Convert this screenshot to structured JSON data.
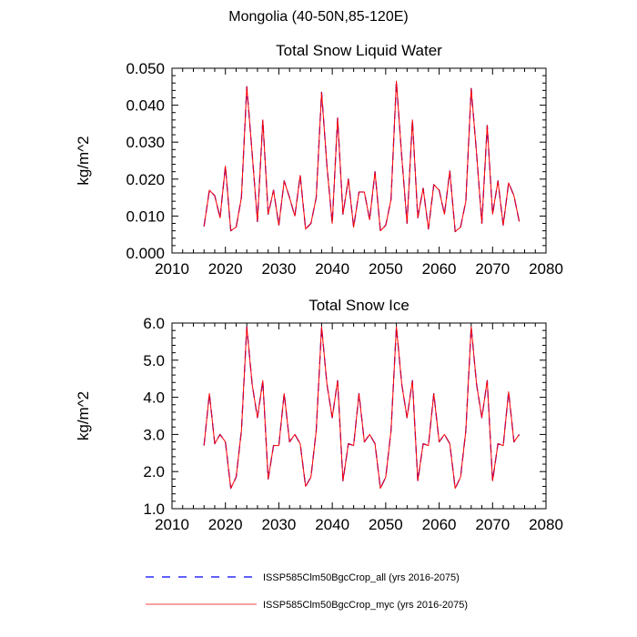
{
  "figure": {
    "title": "Mongolia (40-50N,85-120E)"
  },
  "legend": {
    "placement": "bottom",
    "entries": [
      {
        "label": "ISSP585Clm50BgcCrop_all (yrs 2016-2075)",
        "color": "#0000ff",
        "style": "dashed"
      },
      {
        "label": "ISSP585Clm50BgcCrop_myc (yrs 2016-2075)",
        "color": "#ff0000",
        "style": "solid"
      }
    ]
  },
  "chart_data": [
    {
      "type": "line",
      "title": "Total Snow Liquid Water",
      "xlabel": "",
      "ylabel": "kg/m^2",
      "xlim": [
        2010,
        2080
      ],
      "ylim": [
        0.0,
        0.05
      ],
      "xticks": [
        2010,
        2020,
        2030,
        2040,
        2050,
        2060,
        2070,
        2080
      ],
      "yticks": [
        0.0,
        0.01,
        0.02,
        0.03,
        0.04,
        0.05
      ],
      "ytick_labels": [
        "0.000",
        "0.010",
        "0.020",
        "0.030",
        "0.040",
        "0.050"
      ],
      "grid": false,
      "x": [
        2016,
        2017,
        2018,
        2019,
        2020,
        2021,
        2022,
        2023,
        2024,
        2025,
        2026,
        2027,
        2028,
        2029,
        2030,
        2031,
        2032,
        2033,
        2034,
        2035,
        2036,
        2037,
        2038,
        2039,
        2040,
        2041,
        2042,
        2043,
        2044,
        2045,
        2046,
        2047,
        2048,
        2049,
        2050,
        2051,
        2052,
        2053,
        2054,
        2055,
        2056,
        2057,
        2058,
        2059,
        2060,
        2061,
        2062,
        2063,
        2064,
        2065,
        2066,
        2067,
        2068,
        2069,
        2070,
        2071,
        2072,
        2073,
        2074,
        2075
      ],
      "series": [
        {
          "name": "ISSP585Clm50BgcCrop_all (yrs 2016-2075)",
          "color": "#0000ff",
          "style": "dashed",
          "values": [
            0.0072,
            0.017,
            0.0155,
            0.0095,
            0.0235,
            0.006,
            0.007,
            0.015,
            0.045,
            0.027,
            0.0085,
            0.036,
            0.0105,
            0.017,
            0.0075,
            0.0195,
            0.015,
            0.01,
            0.021,
            0.0065,
            0.008,
            0.015,
            0.0435,
            0.0235,
            0.008,
            0.0365,
            0.0105,
            0.02,
            0.007,
            0.0165,
            0.0165,
            0.009,
            0.022,
            0.006,
            0.0075,
            0.0145,
            0.0465,
            0.026,
            0.008,
            0.036,
            0.0095,
            0.0175,
            0.0065,
            0.0185,
            0.017,
            0.0105,
            0.0222,
            0.0058,
            0.007,
            0.014,
            0.0445,
            0.027,
            0.008,
            0.0345,
            0.0105,
            0.0195,
            0.0075,
            0.019,
            0.0155,
            0.0085
          ]
        },
        {
          "name": "ISSP585Clm50BgcCrop_myc (yrs 2016-2075)",
          "color": "#ff0000",
          "style": "solid",
          "values": [
            0.0072,
            0.017,
            0.0155,
            0.0095,
            0.0235,
            0.006,
            0.007,
            0.015,
            0.045,
            0.027,
            0.0085,
            0.036,
            0.0105,
            0.017,
            0.0075,
            0.0195,
            0.015,
            0.01,
            0.021,
            0.0065,
            0.008,
            0.015,
            0.0435,
            0.0235,
            0.008,
            0.0365,
            0.0105,
            0.02,
            0.007,
            0.0165,
            0.0165,
            0.009,
            0.022,
            0.006,
            0.0075,
            0.0145,
            0.0465,
            0.026,
            0.008,
            0.036,
            0.0095,
            0.0175,
            0.0065,
            0.0185,
            0.017,
            0.0105,
            0.0222,
            0.0058,
            0.007,
            0.014,
            0.0445,
            0.027,
            0.008,
            0.0345,
            0.0105,
            0.0195,
            0.0075,
            0.019,
            0.0155,
            0.0085
          ]
        }
      ]
    },
    {
      "type": "line",
      "title": "Total Snow Ice",
      "xlabel": "",
      "ylabel": "kg/m^2",
      "xlim": [
        2010,
        2080
      ],
      "ylim": [
        1.0,
        6.0
      ],
      "xticks": [
        2010,
        2020,
        2030,
        2040,
        2050,
        2060,
        2070,
        2080
      ],
      "yticks": [
        1.0,
        2.0,
        3.0,
        4.0,
        5.0,
        6.0
      ],
      "ytick_labels": [
        "1.0",
        "2.0",
        "3.0",
        "4.0",
        "5.0",
        "6.0"
      ],
      "grid": false,
      "x": [
        2016,
        2017,
        2018,
        2019,
        2020,
        2021,
        2022,
        2023,
        2024,
        2025,
        2026,
        2027,
        2028,
        2029,
        2030,
        2031,
        2032,
        2033,
        2034,
        2035,
        2036,
        2037,
        2038,
        2039,
        2040,
        2041,
        2042,
        2043,
        2044,
        2045,
        2046,
        2047,
        2048,
        2049,
        2050,
        2051,
        2052,
        2053,
        2054,
        2055,
        2056,
        2057,
        2058,
        2059,
        2060,
        2061,
        2062,
        2063,
        2064,
        2065,
        2066,
        2067,
        2068,
        2069,
        2070,
        2071,
        2072,
        2073,
        2074,
        2075
      ],
      "series": [
        {
          "name": "ISSP585Clm50BgcCrop_all (yrs 2016-2075)",
          "color": "#0000ff",
          "style": "dashed",
          "values": [
            2.7,
            4.1,
            2.75,
            3.0,
            2.8,
            1.55,
            1.85,
            3.1,
            5.9,
            4.35,
            3.45,
            4.45,
            1.8,
            2.7,
            2.7,
            4.1,
            2.8,
            3.0,
            2.75,
            1.6,
            1.85,
            3.1,
            5.9,
            4.35,
            3.45,
            4.45,
            1.75,
            2.75,
            2.7,
            4.1,
            2.8,
            3.0,
            2.75,
            1.55,
            1.85,
            3.1,
            5.9,
            4.35,
            3.45,
            4.45,
            1.75,
            2.75,
            2.7,
            4.1,
            2.8,
            3.0,
            2.75,
            1.55,
            1.85,
            3.1,
            5.9,
            4.35,
            3.45,
            4.45,
            1.75,
            2.75,
            2.7,
            4.15,
            2.8,
            3.0
          ]
        },
        {
          "name": "ISSP585Clm50BgcCrop_myc (yrs 2016-2075)",
          "color": "#ff0000",
          "style": "solid",
          "values": [
            2.7,
            4.1,
            2.75,
            3.0,
            2.8,
            1.55,
            1.85,
            3.1,
            5.9,
            4.35,
            3.45,
            4.45,
            1.8,
            2.7,
            2.7,
            4.1,
            2.8,
            3.0,
            2.75,
            1.6,
            1.85,
            3.1,
            5.9,
            4.35,
            3.45,
            4.45,
            1.75,
            2.75,
            2.7,
            4.1,
            2.8,
            3.0,
            2.75,
            1.55,
            1.85,
            3.1,
            5.9,
            4.35,
            3.45,
            4.45,
            1.75,
            2.75,
            2.7,
            4.1,
            2.8,
            3.0,
            2.75,
            1.55,
            1.85,
            3.1,
            5.9,
            4.35,
            3.45,
            4.45,
            1.75,
            2.75,
            2.7,
            4.15,
            2.8,
            3.0
          ]
        }
      ]
    }
  ]
}
